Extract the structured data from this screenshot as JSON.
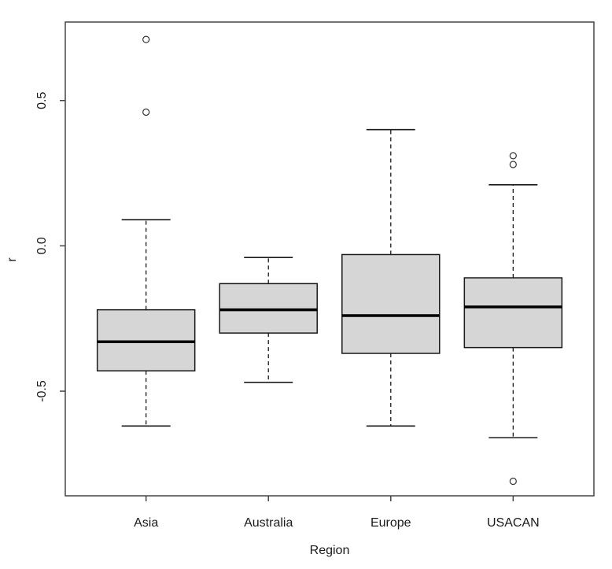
{
  "chart_data": {
    "type": "boxplot",
    "title": "",
    "xlabel": "Region",
    "ylabel": "r",
    "ylim": [
      -0.86,
      0.77
    ],
    "yticks": [
      {
        "value": 0.5,
        "label": "0.5"
      },
      {
        "value": 0.0,
        "label": "0.0"
      },
      {
        "value": -0.5,
        "label": "-0.5"
      }
    ],
    "categories": [
      "Asia",
      "Australia",
      "Europe",
      "USACAN"
    ],
    "series": [
      {
        "category": "Asia",
        "lower_whisker": -0.62,
        "q1": -0.43,
        "median": -0.33,
        "q3": -0.22,
        "upper_whisker": 0.09,
        "outliers": [
          0.71,
          0.46
        ]
      },
      {
        "category": "Australia",
        "lower_whisker": -0.47,
        "q1": -0.3,
        "median": -0.22,
        "q3": -0.13,
        "upper_whisker": -0.04,
        "outliers": []
      },
      {
        "category": "Europe",
        "lower_whisker": -0.62,
        "q1": -0.37,
        "median": -0.24,
        "q3": -0.03,
        "upper_whisker": 0.4,
        "outliers": []
      },
      {
        "category": "USACAN",
        "lower_whisker": -0.66,
        "q1": -0.35,
        "median": -0.21,
        "q3": -0.11,
        "upper_whisker": 0.21,
        "outliers": [
          0.31,
          0.28,
          -0.81
        ]
      }
    ],
    "legend": null,
    "grid": false,
    "style": {
      "background": "#ffffff",
      "box_fill": "#d6d6d6",
      "box_border": "#1a1a1a",
      "median_color": "#000000",
      "whisker_color": "#1a1a1a",
      "whisker_style": "dashed",
      "frame_color": "#454545",
      "outlier_stroke": "#333333"
    }
  }
}
